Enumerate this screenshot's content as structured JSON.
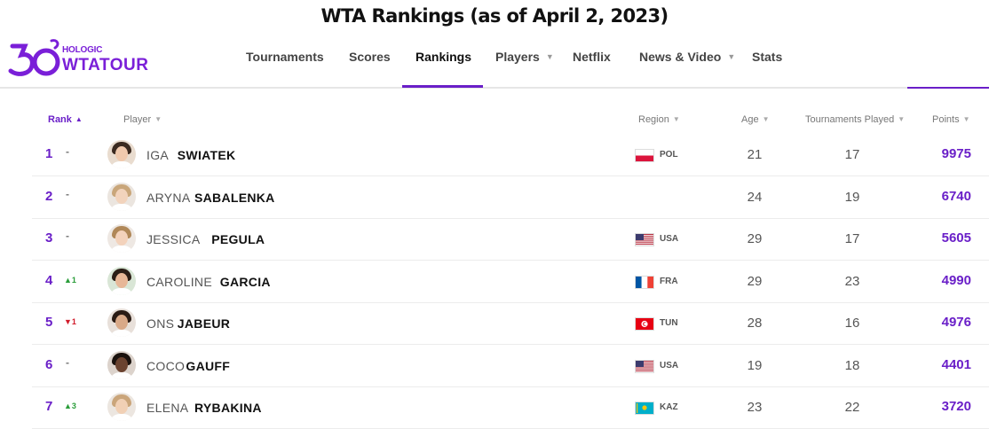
{
  "page_title": "WTA Rankings (as of April 2, 2023)",
  "logo": {
    "number": "50",
    "sponsor": "HOLOGIC",
    "tour": "WTATOUR"
  },
  "nav": [
    {
      "label": "Tournaments",
      "has_caret": false
    },
    {
      "label": "Scores",
      "has_caret": false
    },
    {
      "label": "Rankings",
      "has_caret": false,
      "active": true
    },
    {
      "label": "Players",
      "has_caret": true
    },
    {
      "label": "Netflix",
      "has_caret": false
    },
    {
      "label": "News & Video",
      "has_caret": true
    },
    {
      "label": "Stats",
      "has_caret": false
    }
  ],
  "table_headers": {
    "rank": "Rank",
    "player": "Player",
    "region": "Region",
    "age": "Age",
    "tournaments": "Tournaments Played",
    "points": "Points"
  },
  "colors": {
    "accent": "#6a1fc8",
    "up": "#2a9d3a",
    "down": "#d11a2a"
  },
  "rows": [
    {
      "rank": "1",
      "move": "-",
      "move_dir": "same",
      "first": "IGA",
      "last": "SWIATEK",
      "region": "POL",
      "age": "21",
      "tournaments": "17",
      "points": "9975"
    },
    {
      "rank": "2",
      "move": "-",
      "move_dir": "same",
      "first": "ARYNA",
      "last": "SABALENKA",
      "region": "",
      "age": "24",
      "tournaments": "19",
      "points": "6740"
    },
    {
      "rank": "3",
      "move": "-",
      "move_dir": "same",
      "first": "JESSICA",
      "last": "PEGULA",
      "region": "USA",
      "age": "29",
      "tournaments": "17",
      "points": "5605"
    },
    {
      "rank": "4",
      "move": "▲1",
      "move_dir": "up",
      "first": "CAROLINE",
      "last": "GARCIA",
      "region": "FRA",
      "age": "29",
      "tournaments": "23",
      "points": "4990"
    },
    {
      "rank": "5",
      "move": "▼1",
      "move_dir": "down",
      "first": "ONS",
      "last": "JABEUR",
      "region": "TUN",
      "age": "28",
      "tournaments": "16",
      "points": "4976"
    },
    {
      "rank": "6",
      "move": "-",
      "move_dir": "same",
      "first": "COCO",
      "last": "GAUFF",
      "region": "USA",
      "age": "19",
      "tournaments": "18",
      "points": "4401"
    },
    {
      "rank": "7",
      "move": "▲3",
      "move_dir": "up",
      "first": "ELENA",
      "last": "RYBAKINA",
      "region": "KAZ",
      "age": "23",
      "tournaments": "22",
      "points": "3720"
    }
  ]
}
